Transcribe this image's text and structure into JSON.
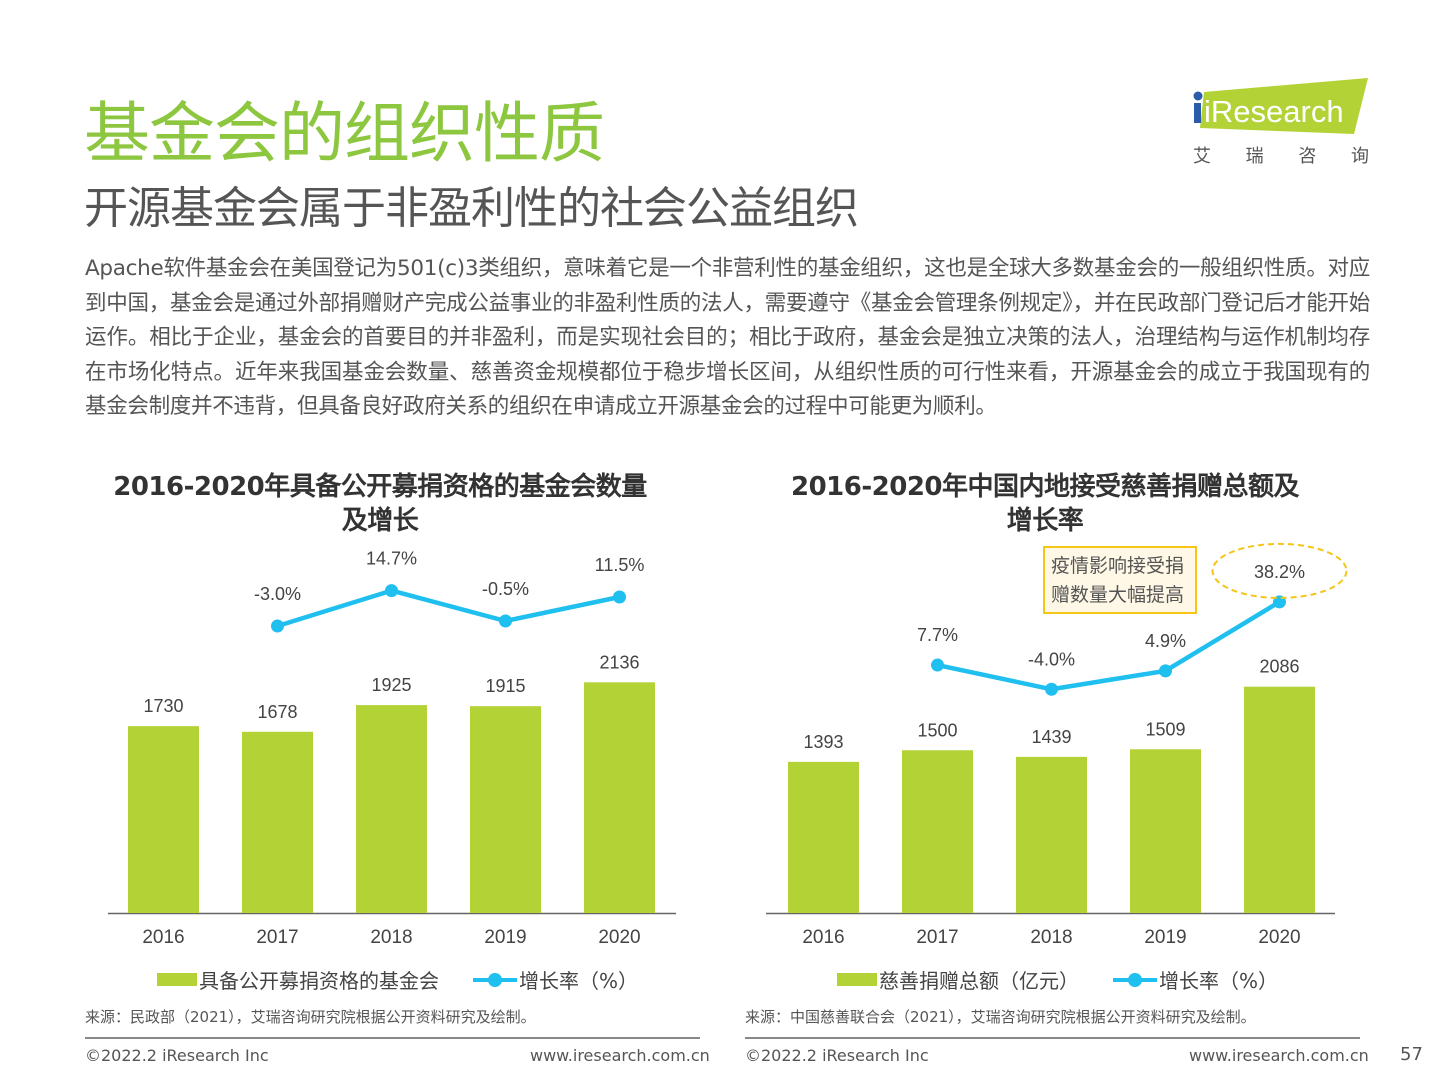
{
  "header": {
    "title": "基金会的组织性质",
    "subtitle": "开源基金会属于非盈利性的社会公益组织",
    "logo": {
      "brand": "iResearch",
      "cn": [
        "艾",
        "瑞",
        "咨",
        "询"
      ],
      "color": "#b2d235"
    }
  },
  "body": {
    "paragraph": "Apache软件基金会在美国登记为501(c)3类组织，意味着它是一个非营利性的基金组织，这也是全球大多数基金会的一般组织性质。对应到中国，基金会是通过外部捐赠财产完成公益事业的非盈利性质的法人，需要遵守《基金会管理条例规定》，并在民政部门登记后才能开始运作。相比于企业，基金会的首要目的并非盈利，而是实现社会目的；相比于政府，基金会是独立决策的法人，治理结构与运作机制均存在市场化特点。近年来我国基金会数量、慈善资金规模都位于稳步增长区间，从组织性质的可行性来看，开源基金会的成立于我国现有的基金会制度并不违背，但具备良好政府关系的组织在申请成立开源基金会的过程中可能更为顺利。"
  },
  "colors": {
    "bar": "#b2d235",
    "line": "#1fbfef",
    "title_green": "#8dc63f",
    "callout_border": "#f5c518"
  },
  "chart_data": [
    {
      "type": "bar+line",
      "title_line1": "2016-2020年具备公开募捐资格的基金会数量",
      "title_line2": "及增长",
      "categories": [
        "2016",
        "2017",
        "2018",
        "2019",
        "2020"
      ],
      "series": [
        {
          "name": "具备公开募捐资格的基金会",
          "type": "bar",
          "values": [
            1730,
            1678,
            1925,
            1915,
            2136
          ],
          "labels": [
            "1730",
            "1678",
            "1925",
            "1915",
            "2136"
          ]
        },
        {
          "name": "增长率（%）",
          "type": "line",
          "values": [
            null,
            -3.0,
            14.7,
            -0.5,
            11.5
          ],
          "labels": [
            "",
            "-3.0%",
            "14.7%",
            "-0.5%",
            "11.5%"
          ]
        }
      ],
      "legend": {
        "bar": "具备公开募捐资格的基金会",
        "line": "增长率（%）",
        "placement": "bottom"
      },
      "source": "来源：民政部（2021），艾瑞咨询研究院根据公开资料研究及绘制。"
    },
    {
      "type": "bar+line",
      "title_line1": "2016-2020年中国内地接受慈善捐赠总额及",
      "title_line2": "增长率",
      "categories": [
        "2016",
        "2017",
        "2018",
        "2019",
        "2020"
      ],
      "series": [
        {
          "name": "慈善捐赠总额（亿元）",
          "type": "bar",
          "values": [
            1393,
            1500,
            1439,
            1509,
            2086
          ],
          "labels": [
            "1393",
            "1500",
            "1439",
            "1509",
            "2086"
          ]
        },
        {
          "name": "增长率（%）",
          "type": "line",
          "values": [
            null,
            7.7,
            -4.0,
            4.9,
            38.2
          ],
          "labels": [
            "",
            "7.7%",
            "-4.0%",
            "4.9%",
            "38.2%"
          ]
        }
      ],
      "annotation": {
        "line1": "疫情影响接受捐",
        "line2": "赠数量大幅提高",
        "highlight": "38.2%"
      },
      "legend": {
        "bar": "慈善捐赠总额（亿元）",
        "line": "增长率（%）",
        "placement": "bottom"
      },
      "source": "来源：中国慈善联合会（2021），艾瑞咨询研究院根据公开资料研究及绘制。"
    }
  ],
  "footer": {
    "copyright_left": "©2022.2 iResearch Inc",
    "url_left": "www.iresearch.com.cn",
    "copyright_right": "©2022.2 iResearch Inc",
    "url_right": "www.iresearch.com.cn",
    "page_number": "57"
  }
}
